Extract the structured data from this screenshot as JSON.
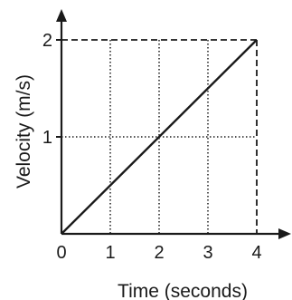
{
  "chart_data": {
    "type": "line",
    "title": "",
    "xlabel": "Time (seconds)",
    "ylabel": "Velocity (m/s)",
    "xlim": [
      0,
      4
    ],
    "ylim": [
      0,
      2
    ],
    "xticks": [
      "0",
      "1",
      "2",
      "3",
      "4"
    ],
    "yticks": [
      "1",
      "2"
    ],
    "grid": true,
    "series": [
      {
        "x": [
          0,
          4
        ],
        "y": [
          0,
          2
        ]
      }
    ],
    "colors": {
      "line": "#1a1a1a",
      "axis": "#1a1a1a",
      "grid": "#1a1a1a"
    }
  }
}
